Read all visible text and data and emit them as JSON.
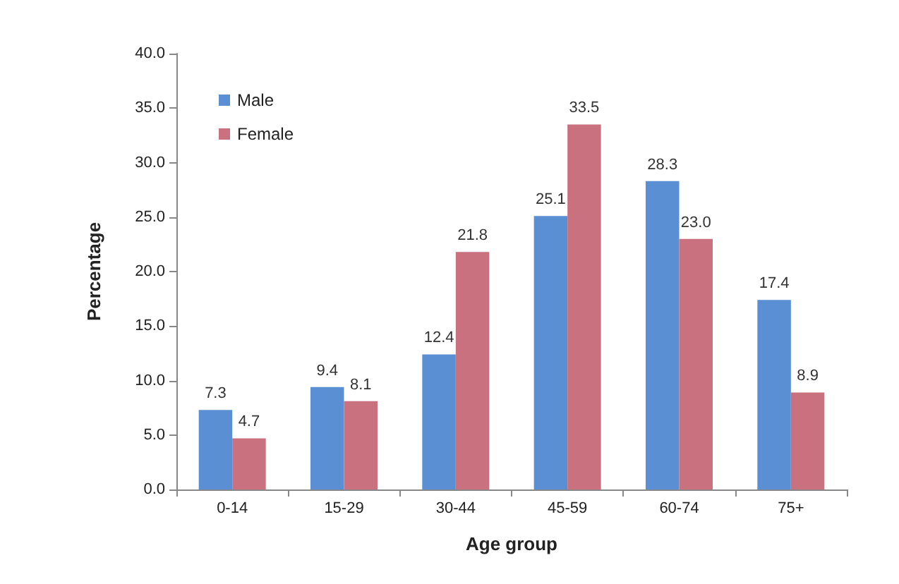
{
  "chart_data": {
    "type": "bar",
    "xlabel": "Age group",
    "ylabel": "Percentage",
    "categories": [
      "0-14",
      "15-29",
      "30-44",
      "45-59",
      "60-74",
      "75+"
    ],
    "series": [
      {
        "name": "Male",
        "color": "#5b8fd3",
        "values": [
          7.3,
          9.4,
          12.4,
          25.1,
          28.3,
          17.4
        ],
        "value_labels": [
          "7.3",
          "9.4",
          "12.4",
          "25.1",
          "28.3",
          "17.4"
        ]
      },
      {
        "name": "Female",
        "color": "#c9717f",
        "values": [
          4.7,
          8.1,
          21.8,
          33.5,
          23.0,
          8.9
        ],
        "value_labels": [
          "4.7",
          "8.1",
          "21.8",
          "33.5",
          "23.0",
          "8.9"
        ]
      }
    ],
    "ylim": [
      0,
      40
    ],
    "yticks": [
      {
        "value": 0,
        "label": "0.0"
      },
      {
        "value": 5,
        "label": "5.0"
      },
      {
        "value": 10,
        "label": "10.0"
      },
      {
        "value": 15,
        "label": "15.0"
      },
      {
        "value": 20,
        "label": "20.0"
      },
      {
        "value": 25,
        "label": "25.0"
      },
      {
        "value": 30,
        "label": "30.0"
      },
      {
        "value": 35,
        "label": "35.0"
      },
      {
        "value": 40,
        "label": "40.0"
      }
    ],
    "grid": false,
    "legend": "top left"
  }
}
